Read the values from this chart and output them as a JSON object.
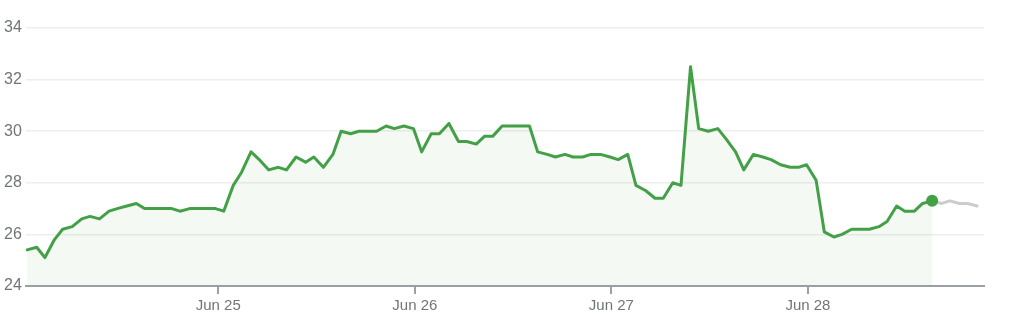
{
  "chart_data": {
    "type": "line",
    "xlim": [
      "--06-24T00:30",
      "--06-28T21:30"
    ],
    "ylim": [
      24,
      34
    ],
    "yticks": [
      24,
      26,
      28,
      30,
      32,
      34
    ],
    "xticks": [
      {
        "value": "--06-25",
        "label": "Jun 25"
      },
      {
        "value": "--06-26",
        "label": "Jun 26"
      },
      {
        "value": "--06-27",
        "label": "Jun 27"
      },
      {
        "value": "--06-28",
        "label": "Jun 28"
      }
    ],
    "grid": "y",
    "legend": false,
    "marker": "none",
    "line_style": "solid",
    "series": [
      {
        "type": "area",
        "color": "#43a047",
        "x": [
          "--06-24T00:40",
          "--06-24T01:50",
          "--06-24T02:50",
          "--06-24T04:00",
          "--06-24T05:00",
          "--06-24T06:10",
          "--06-24T07:20",
          "--06-24T08:20",
          "--06-24T09:30",
          "--06-24T10:40",
          "--06-24T11:40",
          "--06-24T12:50",
          "--06-24T14:00",
          "--06-24T15:00",
          "--06-24T16:10",
          "--06-24T17:10",
          "--06-24T18:20",
          "--06-24T19:20",
          "--06-24T20:30",
          "--06-24T21:30",
          "--06-24T22:40",
          "--06-24T23:40",
          "--06-25T00:40",
          "--06-25T01:50",
          "--06-25T02:50",
          "--06-25T04:00",
          "--06-25T05:00",
          "--06-25T06:10",
          "--06-25T07:20",
          "--06-25T08:20",
          "--06-25T09:30",
          "--06-25T10:40",
          "--06-25T11:40",
          "--06-25T12:50",
          "--06-25T14:00",
          "--06-25T15:00",
          "--06-25T16:10",
          "--06-25T17:10",
          "--06-25T18:20",
          "--06-25T19:20",
          "--06-25T20:30",
          "--06-25T21:30",
          "--06-25T22:40",
          "--06-25T23:50",
          "--06-26T00:50",
          "--06-26T02:00",
          "--06-26T03:00",
          "--06-26T04:10",
          "--06-26T05:20",
          "--06-26T06:20",
          "--06-26T07:30",
          "--06-26T08:30",
          "--06-26T09:30",
          "--06-26T10:40",
          "--06-26T11:50",
          "--06-26T12:50",
          "--06-26T14:00",
          "--06-26T15:00",
          "--06-26T16:10",
          "--06-26T17:10",
          "--06-26T18:20",
          "--06-26T19:20",
          "--06-26T20:30",
          "--06-26T21:30",
          "--06-26T22:40",
          "--06-26T23:50",
          "--06-27T00:50",
          "--06-27T02:00",
          "--06-27T03:00",
          "--06-27T04:10",
          "--06-27T05:20",
          "--06-27T06:20",
          "--06-27T07:30",
          "--06-27T08:30",
          "--06-27T09:40",
          "--06-27T10:40",
          "--06-27T11:50",
          "--06-27T13:00",
          "--06-27T14:00",
          "--06-27T15:10",
          "--06-27T16:10",
          "--06-27T17:20",
          "--06-27T18:30",
          "--06-27T19:30",
          "--06-27T20:40",
          "--06-27T21:50",
          "--06-27T22:50",
          "--06-27T23:50",
          "--06-28T01:00",
          "--06-28T02:00",
          "--06-28T03:10",
          "--06-28T04:10",
          "--06-28T05:20",
          "--06-28T06:20",
          "--06-28T07:30",
          "--06-28T08:40",
          "--06-28T09:40",
          "--06-28T10:50",
          "--06-28T11:50",
          "--06-28T13:00",
          "--06-28T14:00",
          "--06-28T15:10"
        ],
        "values": [
          25.4,
          25.5,
          25.1,
          25.8,
          26.2,
          26.3,
          26.6,
          26.7,
          26.6,
          26.9,
          27.0,
          27.1,
          27.2,
          27.0,
          27.0,
          27.0,
          27.0,
          26.9,
          27.0,
          27.0,
          27.0,
          27.0,
          26.9,
          27.9,
          28.4,
          29.2,
          28.9,
          28.5,
          28.6,
          28.5,
          29.0,
          28.8,
          29.0,
          28.6,
          29.1,
          30.0,
          29.9,
          30.0,
          30.0,
          30.0,
          30.2,
          30.1,
          30.2,
          30.1,
          29.2,
          29.9,
          29.9,
          30.3,
          29.6,
          29.6,
          29.5,
          29.8,
          29.8,
          30.2,
          30.2,
          30.2,
          30.2,
          29.2,
          29.1,
          29.0,
          29.1,
          29.0,
          29.0,
          29.1,
          29.1,
          29.0,
          28.9,
          29.1,
          27.9,
          27.7,
          27.4,
          27.4,
          28.0,
          27.9,
          32.5,
          30.1,
          30.0,
          30.1,
          29.7,
          29.2,
          28.5,
          29.1,
          29.0,
          28.9,
          28.7,
          28.6,
          28.6,
          28.7,
          28.1,
          26.1,
          25.9,
          26.0,
          26.2,
          26.2,
          26.2,
          26.3,
          26.5,
          27.1,
          26.9,
          26.9,
          27.2,
          27.3
        ]
      },
      {
        "type": "line",
        "color": "#cccccc",
        "x": [
          "--06-28T15:10",
          "--06-28T16:20",
          "--06-28T17:20",
          "--06-28T18:30",
          "--06-28T19:30",
          "--06-28T20:40"
        ],
        "values": [
          27.3,
          27.2,
          27.3,
          27.2,
          27.2,
          27.1
        ]
      },
      {
        "type": "scatter",
        "color": "#43a047",
        "marker": "circle",
        "x": [
          "--06-28T15:10"
        ],
        "values": [
          27.3
        ]
      }
    ]
  }
}
